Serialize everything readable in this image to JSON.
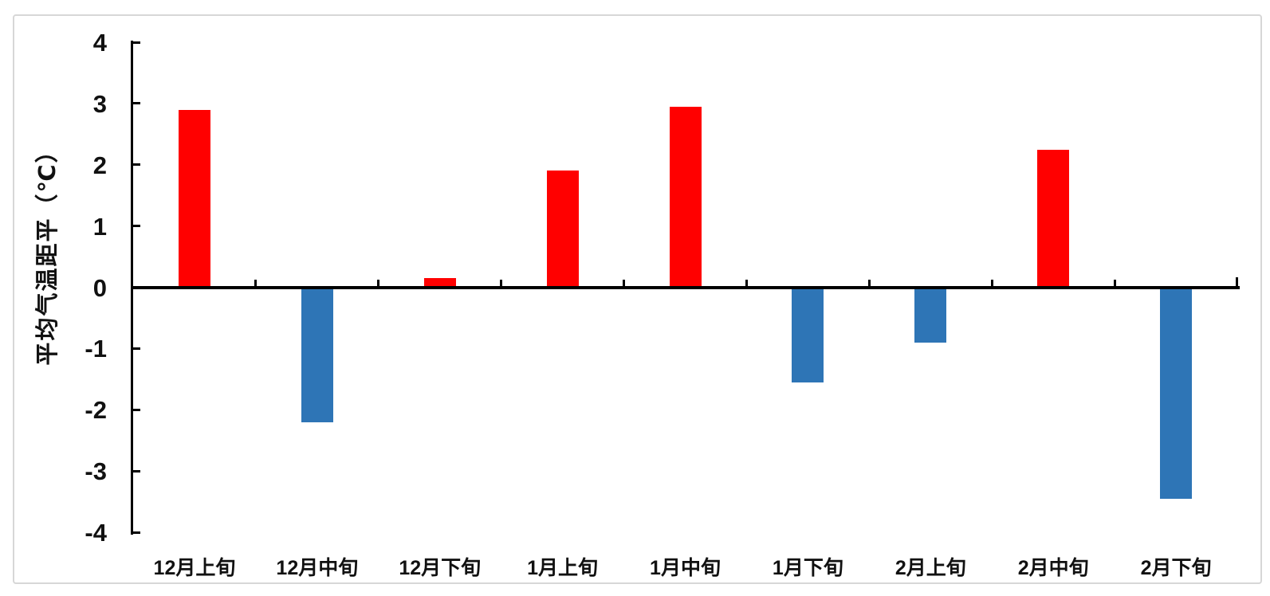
{
  "chart_data": {
    "type": "bar",
    "title": "",
    "xlabel": "",
    "ylabel": "平均气温距平（℃）",
    "categories": [
      "12月上旬",
      "12月中旬",
      "12月下旬",
      "1月上旬",
      "1月中旬",
      "1月下旬",
      "2月上旬",
      "2月中旬",
      "2月下旬"
    ],
    "values": [
      2.9,
      -2.2,
      0.15,
      1.9,
      2.95,
      -1.55,
      -0.9,
      2.25,
      -3.45
    ],
    "ylim": [
      -4,
      4
    ],
    "yticks": [
      "4",
      "3",
      "2",
      "1",
      "0",
      "-1",
      "-2",
      "-3",
      "-4"
    ],
    "grid": false,
    "legend": null,
    "positive_color": "#ff0000",
    "negative_color": "#2e75b6",
    "axis_color": "#000000"
  },
  "frame": {
    "border_color": "#d7d7d7",
    "background_color": "#ffffff"
  }
}
